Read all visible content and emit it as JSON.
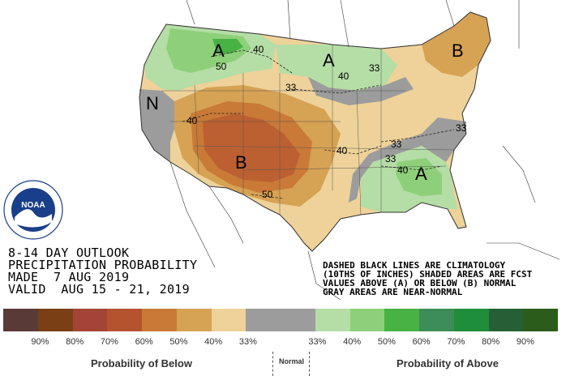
{
  "title_lines": [
    "8-14 DAY OUTLOOK",
    "PRECIPITATION PROBABILITY",
    "MADE  7 AUG 2019",
    "VALID  AUG 15 - 21, 2019"
  ],
  "notes_lines": [
    "DASHED BLACK LINES ARE CLIMATOLOGY",
    "(10THS OF INCHES) SHADED AREAS ARE FCST",
    "VALUES ABOVE (A) OR BELOW (B) NORMAL",
    "GRAY AREAS ARE NEAR-NORMAL"
  ],
  "map_labels": {
    "A": "A",
    "B": "B",
    "N": "N",
    "p33": "33",
    "p40": "40",
    "p50": "50"
  },
  "logo_text": "NOAA",
  "legend": {
    "colors": [
      "#5a3a37",
      "#7a3f15",
      "#a44436",
      "#b5532f",
      "#c97a37",
      "#d6a254",
      "#eed299",
      "#9c9c9c",
      "#9c9c9c",
      "#b5dda6",
      "#8ed07a",
      "#48b244",
      "#3c8d57",
      "#1f8e3a",
      "#265f36",
      "#2b5c1c"
    ],
    "tick_labels": [
      "90%",
      "80%",
      "70%",
      "60%",
      "50%",
      "40%",
      "33%",
      "33%",
      "40%",
      "50%",
      "60%",
      "70%",
      "80%",
      "90%"
    ],
    "below_label": "Probability of Below",
    "normal_label": "Normal",
    "above_label": "Probability of Above"
  }
}
